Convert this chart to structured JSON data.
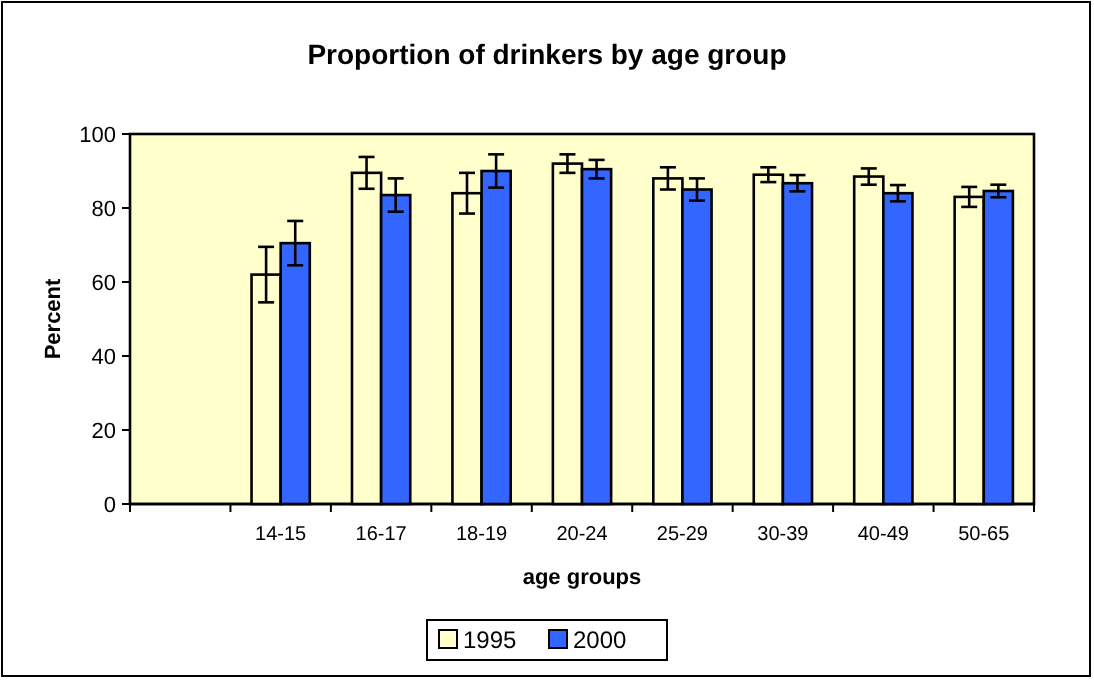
{
  "chart_data": {
    "type": "bar",
    "title": "Proportion of drinkers by age group",
    "xlabel": "age groups",
    "ylabel": "Percent",
    "categories": [
      null,
      "14-15",
      "16-17",
      "18-19",
      "20-24",
      "25-29",
      "30-39",
      "40-49",
      "50-65"
    ],
    "series": [
      {
        "name": "1995",
        "color": "#ffffcc",
        "values": [
          null,
          62,
          89.5,
          84,
          92,
          88,
          89,
          88.5,
          83
        ],
        "errors": [
          null,
          7.5,
          4.3,
          5.5,
          2.5,
          3,
          2,
          2.2,
          2.7
        ]
      },
      {
        "name": "2000",
        "color": "#3366ff",
        "values": [
          null,
          70.5,
          83.5,
          90,
          90.5,
          85,
          86.7,
          84,
          84.6
        ],
        "errors": [
          null,
          6,
          4.5,
          4.5,
          2.5,
          3,
          2.2,
          2.2,
          1.7
        ]
      }
    ],
    "ylim": [
      0,
      100
    ],
    "yticks": [
      0,
      20,
      40,
      60,
      80,
      100
    ],
    "grid": false,
    "legend": "bottom"
  }
}
